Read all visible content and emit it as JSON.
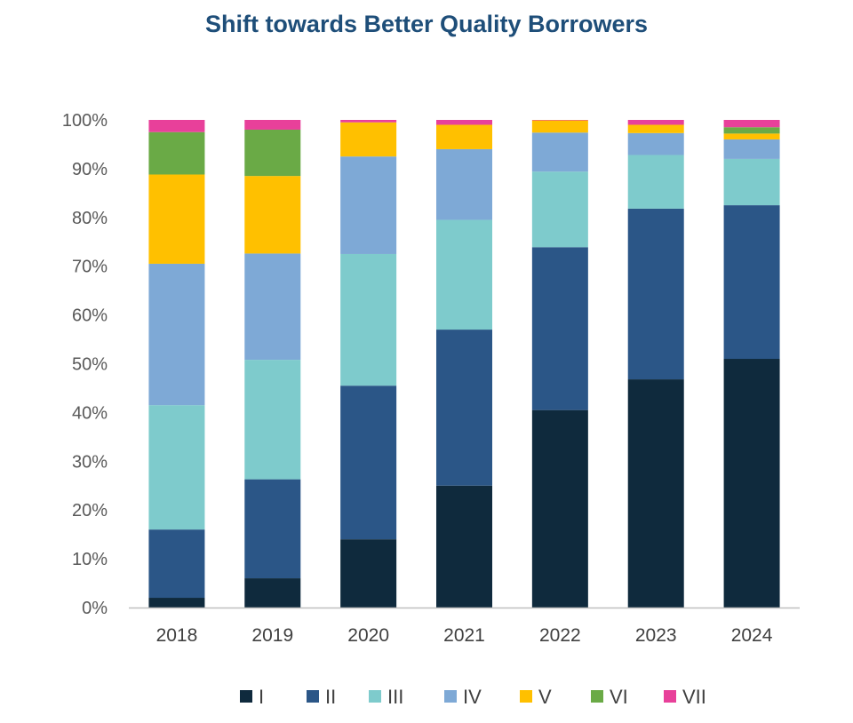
{
  "chart_data": {
    "type": "bar",
    "stacked": true,
    "percent": true,
    "title": "Shift towards Better Quality Borrowers",
    "xlabel": "",
    "ylabel": "",
    "ylim": [
      0,
      100
    ],
    "yticks": [
      0,
      10,
      20,
      30,
      40,
      50,
      60,
      70,
      80,
      90,
      100
    ],
    "ytick_labels": [
      "0%",
      "10%",
      "20%",
      "30%",
      "40%",
      "50%",
      "60%",
      "70%",
      "80%",
      "90%",
      "100%"
    ],
    "categories": [
      "2018",
      "2019",
      "2020",
      "2021",
      "2022",
      "2023",
      "2024"
    ],
    "legend_position": "bottom",
    "grid": false,
    "series": [
      {
        "name": "I",
        "color": "#0f2a3d",
        "values": [
          2,
          6,
          14,
          25,
          40.5,
          46.8,
          51
        ]
      },
      {
        "name": "II",
        "color": "#2b5687",
        "values": [
          14,
          20.3,
          31.5,
          32,
          33.4,
          35,
          31.5
        ]
      },
      {
        "name": "III",
        "color": "#7ecbcc",
        "values": [
          25.5,
          24.5,
          27,
          22.5,
          15.5,
          11,
          9.5
        ]
      },
      {
        "name": "IV",
        "color": "#7ea9d6",
        "values": [
          29,
          21.8,
          20,
          14.5,
          8,
          4.5,
          4
        ]
      },
      {
        "name": "V",
        "color": "#ffc000",
        "values": [
          18.3,
          15.9,
          7,
          5,
          2.5,
          1.7,
          1.2
        ]
      },
      {
        "name": "VI",
        "color": "#6aaa46",
        "values": [
          8.7,
          9.5,
          0,
          0,
          0,
          0,
          1.3
        ]
      },
      {
        "name": "VII",
        "color": "#e8409a",
        "values": [
          2.5,
          2,
          0.5,
          1,
          0.1,
          1,
          1.5
        ]
      }
    ]
  }
}
